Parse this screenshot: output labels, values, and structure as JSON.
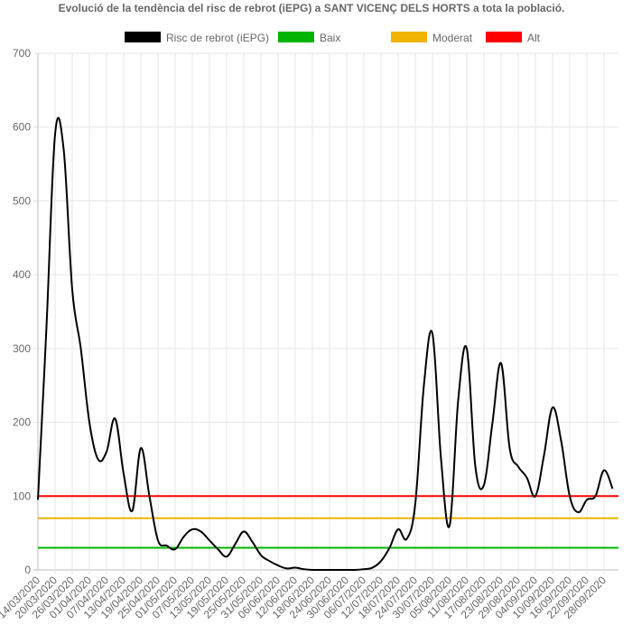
{
  "chart_data": {
    "type": "line",
    "title": "Evolució de la tendència del risc de rebrot (iEPG) a SANT VICENÇ DELS HORTS a tota la població.",
    "categories": [
      "14/03/2020",
      null,
      "20/03/2020",
      null,
      "26/03/2020",
      null,
      "01/04/2020",
      null,
      "07/04/2020",
      null,
      "13/04/2020",
      null,
      "19/04/2020",
      null,
      "25/04/2020",
      null,
      "01/05/2020",
      null,
      "07/05/2020",
      null,
      "13/05/2020",
      null,
      "19/05/2020",
      null,
      "25/05/2020",
      null,
      "31/05/2020",
      null,
      "06/06/2020",
      null,
      "12/06/2020",
      null,
      "18/06/2020",
      null,
      "24/06/2020",
      null,
      "30/06/2020",
      null,
      "06/07/2020",
      null,
      "12/07/2020",
      null,
      "18/07/2020",
      null,
      "24/07/2020",
      null,
      "30/07/2020",
      null,
      "05/08/2020",
      null,
      "11/08/2020",
      null,
      "17/08/2020",
      null,
      "23/08/2020",
      null,
      "29/08/2020",
      null,
      "04/09/2020",
      null,
      "10/09/2020",
      null,
      "16/09/2020",
      null,
      "22/09/2020",
      null,
      "28/09/2020",
      null
    ],
    "series": [
      {
        "name": "Risc de rebrot (iEPG)",
        "color": "#000000",
        "values": [
          95,
          330,
          590,
          570,
          380,
          300,
          200,
          150,
          160,
          205,
          130,
          80,
          165,
          100,
          40,
          33,
          28,
          45,
          55,
          52,
          40,
          28,
          18,
          35,
          52,
          38,
          20,
          12,
          6,
          2,
          3,
          1,
          0,
          0,
          0,
          0,
          0,
          0,
          1,
          3,
          12,
          30,
          55,
          42,
          90,
          250,
          320,
          150,
          60,
          230,
          300,
          140,
          115,
          200,
          280,
          165,
          140,
          125,
          100,
          155,
          220,
          175,
          100,
          78,
          95,
          100,
          135,
          110
        ]
      }
    ],
    "thresholds": [
      {
        "name": "Baix",
        "color": "#00b400",
        "value": 30
      },
      {
        "name": "Moderat",
        "color": "#f0b400",
        "value": 70
      },
      {
        "name": "Alt",
        "color": "#ff0000",
        "value": 100
      }
    ],
    "ylim": [
      0,
      700
    ],
    "yticks": [
      0,
      100,
      200,
      300,
      400,
      500,
      600,
      700
    ],
    "grid": true
  }
}
